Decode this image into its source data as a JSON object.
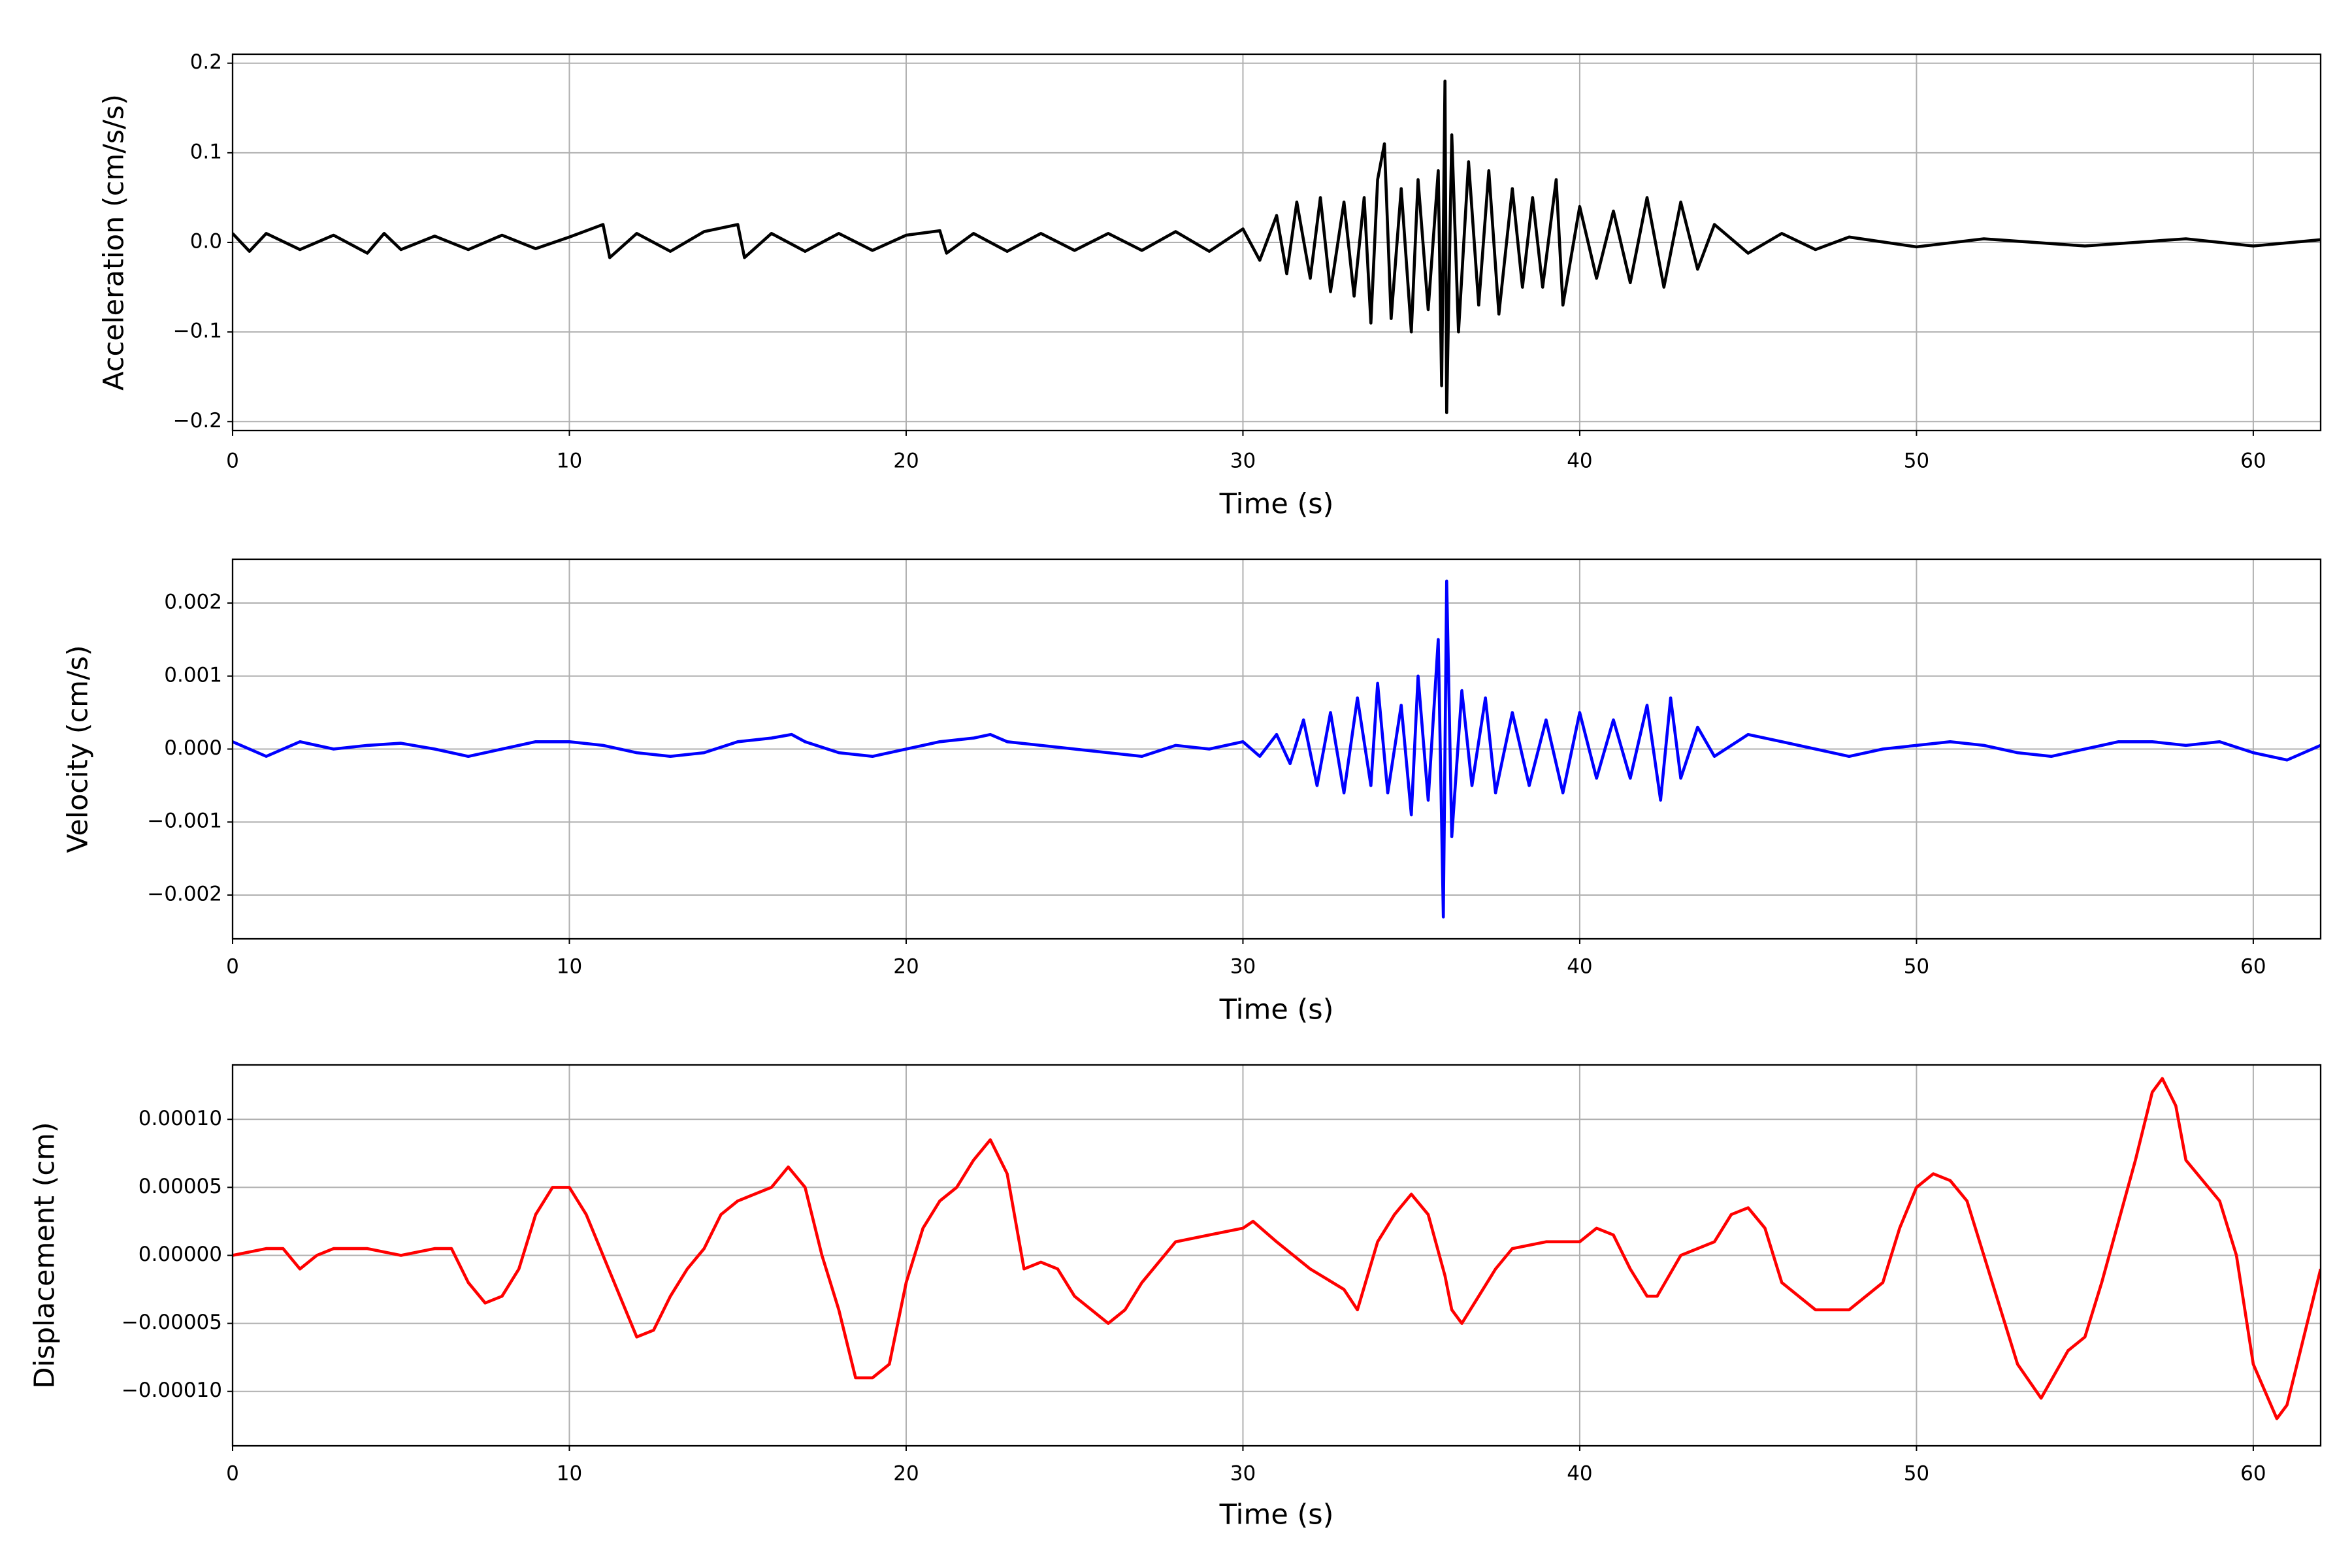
{
  "chart_data": [
    {
      "type": "line",
      "xlabel": "Time (s)",
      "ylabel": "Acceleration (cm/s/s)",
      "color": "#000000",
      "grid": true,
      "xlim": [
        0,
        62
      ],
      "xticks": [
        0,
        10,
        20,
        30,
        40,
        50,
        60
      ],
      "ylim": [
        -0.21,
        0.21
      ],
      "yticks": [
        {
          "value": -0.2,
          "label": "−0.2"
        },
        {
          "value": -0.1,
          "label": "−0.1"
        },
        {
          "value": 0,
          "label": "0.0"
        },
        {
          "value": 0.1,
          "label": "0.1"
        },
        {
          "value": 0.2,
          "label": "0.2"
        }
      ],
      "x": [
        0,
        0.5,
        1,
        2,
        3,
        4,
        4.5,
        5,
        6,
        7,
        8,
        9,
        10,
        11,
        11.2,
        12,
        13,
        14,
        15,
        15.2,
        16,
        17,
        18,
        19,
        20,
        21,
        21.2,
        22,
        23,
        24,
        25,
        26,
        27,
        28,
        29,
        30,
        30.5,
        31,
        31.3,
        31.6,
        32,
        32.3,
        32.6,
        33,
        33.3,
        33.6,
        33.8,
        34,
        34.2,
        34.4,
        34.7,
        35,
        35.2,
        35.5,
        35.8,
        35.9,
        36,
        36.05,
        36.2,
        36.4,
        36.7,
        37,
        37.3,
        37.6,
        38,
        38.3,
        38.6,
        38.9,
        39.3,
        39.5,
        40,
        40.5,
        41,
        41.5,
        42,
        42.5,
        43,
        43.5,
        44,
        45,
        46,
        47,
        48,
        50,
        52,
        55,
        58,
        60,
        62
      ],
      "values": [
        0.01,
        -0.01,
        0.01,
        -0.008,
        0.008,
        -0.012,
        0.01,
        -0.008,
        0.007,
        -0.008,
        0.008,
        -0.007,
        0.006,
        0.02,
        -0.017,
        0.01,
        -0.01,
        0.012,
        0.02,
        -0.017,
        0.01,
        -0.01,
        0.01,
        -0.009,
        0.008,
        0.013,
        -0.012,
        0.01,
        -0.01,
        0.01,
        -0.009,
        0.01,
        -0.009,
        0.012,
        -0.01,
        0.015,
        -0.02,
        0.03,
        -0.035,
        0.045,
        -0.04,
        0.05,
        -0.055,
        0.045,
        -0.06,
        0.05,
        -0.09,
        0.07,
        0.11,
        -0.085,
        0.06,
        -0.1,
        0.07,
        -0.075,
        0.08,
        -0.16,
        0.18,
        -0.19,
        0.12,
        -0.1,
        0.09,
        -0.07,
        0.08,
        -0.08,
        0.06,
        -0.05,
        0.05,
        -0.05,
        0.07,
        -0.07,
        0.04,
        -0.04,
        0.035,
        -0.045,
        0.05,
        -0.05,
        0.045,
        -0.03,
        0.02,
        -0.012,
        0.01,
        -0.008,
        0.006,
        -0.005,
        0.004,
        -0.004,
        0.004,
        -0.004,
        0.003
      ]
    },
    {
      "type": "line",
      "xlabel": "Time (s)",
      "ylabel": "Velocity (cm/s)",
      "color": "#0000ff",
      "grid": true,
      "xlim": [
        0,
        62
      ],
      "xticks": [
        0,
        10,
        20,
        30,
        40,
        50,
        60
      ],
      "ylim": [
        -0.0026,
        0.0026
      ],
      "yticks": [
        {
          "value": -0.002,
          "label": "−0.002"
        },
        {
          "value": -0.001,
          "label": "−0.001"
        },
        {
          "value": 0,
          "label": "0.000"
        },
        {
          "value": 0.001,
          "label": "0.001"
        },
        {
          "value": 0.002,
          "label": "0.002"
        }
      ],
      "x": [
        0,
        1,
        2,
        3,
        4,
        5,
        6,
        7,
        8,
        9,
        10,
        11,
        12,
        13,
        14,
        15,
        16,
        16.6,
        17,
        18,
        19,
        20,
        21,
        22,
        22.5,
        23,
        24,
        25,
        26,
        27,
        28,
        29,
        30,
        30.5,
        31,
        31.4,
        31.8,
        32.2,
        32.6,
        33,
        33.4,
        33.8,
        34,
        34.3,
        34.7,
        35,
        35.2,
        35.5,
        35.8,
        35.95,
        36.05,
        36.2,
        36.5,
        36.8,
        37.2,
        37.5,
        38,
        38.5,
        39,
        39.5,
        40,
        40.5,
        41,
        41.5,
        42,
        42.4,
        42.7,
        43,
        43.5,
        44,
        45,
        46,
        47,
        48,
        49,
        50,
        51,
        52,
        53,
        54,
        55,
        56,
        57,
        58,
        59,
        60,
        61,
        62
      ],
      "values": [
        0.0001,
        -0.0001,
        0.0001,
        0,
        5e-05,
        8e-05,
        0,
        -0.0001,
        0,
        0.0001,
        0.0001,
        5e-05,
        -5e-05,
        -0.0001,
        -5e-05,
        0.0001,
        0.00015,
        0.0002,
        0.0001,
        -5e-05,
        -0.0001,
        0,
        0.0001,
        0.00015,
        0.0002,
        0.0001,
        5e-05,
        0,
        -5e-05,
        -0.0001,
        5e-05,
        0,
        0.0001,
        -0.0001,
        0.0002,
        -0.0002,
        0.0004,
        -0.0005,
        0.0005,
        -0.0006,
        0.0007,
        -0.0005,
        0.0009,
        -0.0006,
        0.0006,
        -0.0009,
        0.001,
        -0.0007,
        0.0015,
        -0.0023,
        0.0023,
        -0.0012,
        0.0008,
        -0.0005,
        0.0007,
        -0.0006,
        0.0005,
        -0.0005,
        0.0004,
        -0.0006,
        0.0005,
        -0.0004,
        0.0004,
        -0.0004,
        0.0006,
        -0.0007,
        0.0007,
        -0.0004,
        0.0003,
        -0.0001,
        0.0002,
        0.0001,
        0,
        -0.0001,
        0,
        5e-05,
        0.0001,
        5e-05,
        -5e-05,
        -0.0001,
        0,
        0.0001,
        0.0001,
        5e-05,
        0.0001,
        -5e-05,
        -0.00015,
        5e-05
      ]
    },
    {
      "type": "line",
      "xlabel": "Time (s)",
      "ylabel": "Displacement (cm)",
      "color": "#ff0000",
      "grid": true,
      "xlim": [
        0,
        62
      ],
      "xticks": [
        0,
        10,
        20,
        30,
        40,
        50,
        60
      ],
      "ylim": [
        -0.00014,
        0.00014
      ],
      "yticks": [
        {
          "value": -0.0001,
          "label": "−0.00010"
        },
        {
          "value": -5e-05,
          "label": "−0.00005"
        },
        {
          "value": 0,
          "label": "0.00000"
        },
        {
          "value": 5e-05,
          "label": "0.00005"
        },
        {
          "value": 0.0001,
          "label": "0.00010"
        }
      ],
      "x": [
        0,
        1,
        1.5,
        2,
        2.5,
        3,
        4,
        5,
        6,
        6.5,
        7,
        7.5,
        8,
        8.5,
        9,
        9.5,
        10,
        10.5,
        11,
        11.5,
        12,
        12.5,
        13,
        13.5,
        14,
        14.5,
        15,
        16,
        16.5,
        17,
        17.5,
        18,
        18.5,
        19,
        19.5,
        20,
        20.5,
        21,
        21.5,
        22,
        22.5,
        23,
        23.5,
        24,
        24.5,
        25,
        26,
        26.5,
        27,
        28,
        29,
        30,
        30.3,
        31,
        32,
        33,
        33.4,
        34,
        34.5,
        35,
        35.5,
        36,
        36.2,
        36.5,
        37,
        37.5,
        38,
        39,
        40,
        40.5,
        41,
        41.5,
        42,
        42.3,
        43,
        44,
        44.5,
        45,
        45.5,
        46,
        47,
        48,
        49,
        49.5,
        50,
        50.5,
        51,
        51.5,
        52,
        53,
        53.7,
        54.5,
        55,
        55.5,
        56.5,
        57,
        57.3,
        57.7,
        58,
        59,
        59.5,
        60,
        60.7,
        61,
        61.5,
        62
      ],
      "values": [
        0,
        5e-06,
        5e-06,
        -1e-05,
        0,
        5e-06,
        5e-06,
        0,
        5e-06,
        5e-06,
        -2e-05,
        -3.5e-05,
        -3e-05,
        -1e-05,
        3e-05,
        5e-05,
        5e-05,
        3e-05,
        0,
        -3e-05,
        -6e-05,
        -5.5e-05,
        -3e-05,
        -1e-05,
        5e-06,
        3e-05,
        4e-05,
        5e-05,
        6.5e-05,
        5e-05,
        0,
        -4e-05,
        -9e-05,
        -9e-05,
        -8e-05,
        -2e-05,
        2e-05,
        4e-05,
        5e-05,
        7e-05,
        8.5e-05,
        6e-05,
        -1e-05,
        -5e-06,
        -1e-05,
        -3e-05,
        -5e-05,
        -4e-05,
        -2e-05,
        1e-05,
        1.5e-05,
        2e-05,
        2.5e-05,
        1e-05,
        -1e-05,
        -2.5e-05,
        -4e-05,
        1e-05,
        3e-05,
        4.5e-05,
        3e-05,
        -1.5e-05,
        -4e-05,
        -5e-05,
        -3e-05,
        -1e-05,
        5e-06,
        1e-05,
        1e-05,
        2e-05,
        1.5e-05,
        -1e-05,
        -3e-05,
        -3e-05,
        0,
        1e-05,
        3e-05,
        3.5e-05,
        2e-05,
        -2e-05,
        -4e-05,
        -4e-05,
        -2e-05,
        2e-05,
        5e-05,
        6e-05,
        5.5e-05,
        4e-05,
        0,
        -8e-05,
        -0.000105,
        -7e-05,
        -6e-05,
        -2e-05,
        7e-05,
        0.00012,
        0.00013,
        0.00011,
        7e-05,
        4e-05,
        0,
        -8e-05,
        -0.00012,
        -0.00011,
        -6e-05,
        -1e-05
      ]
    }
  ]
}
